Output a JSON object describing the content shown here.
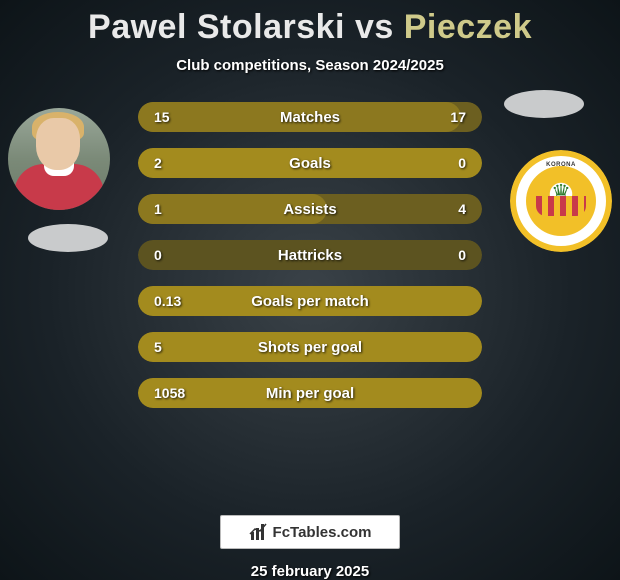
{
  "colors": {
    "player1_accent": "#a38b1e",
    "player2_accent": "#7a6a20",
    "bar_base": "#5c5320",
    "text_shadow": "#000000"
  },
  "title": {
    "player1": "Pawel Stolarski",
    "vs": "vs",
    "player2": "Pieczek",
    "p1_color": "#e9e9e9",
    "vs_color": "#e9e9e9",
    "p2_color": "#cfca8a"
  },
  "subtitle": "Club competitions, Season 2024/2025",
  "stats": [
    {
      "label": "Matches",
      "v1": "15",
      "v2": "17",
      "p1_pct": 94,
      "p2_pct": 100
    },
    {
      "label": "Goals",
      "v1": "2",
      "v2": "0",
      "p1_pct": 100,
      "p2_pct": 0
    },
    {
      "label": "Assists",
      "v1": "1",
      "v2": "4",
      "p1_pct": 55,
      "p2_pct": 100
    },
    {
      "label": "Hattricks",
      "v1": "0",
      "v2": "0",
      "p1_pct": 0,
      "p2_pct": 0
    },
    {
      "label": "Goals per match",
      "v1": "0.13",
      "v2": "",
      "p1_pct": 100,
      "p2_pct": 0
    },
    {
      "label": "Shots per goal",
      "v1": "5",
      "v2": "",
      "p1_pct": 100,
      "p2_pct": 0
    },
    {
      "label": "Min per goal",
      "v1": "1058",
      "v2": "",
      "p1_pct": 100,
      "p2_pct": 0
    }
  ],
  "logo_text": "FcTables.com",
  "date": "25 february 2025",
  "badge_text": "KORONA"
}
